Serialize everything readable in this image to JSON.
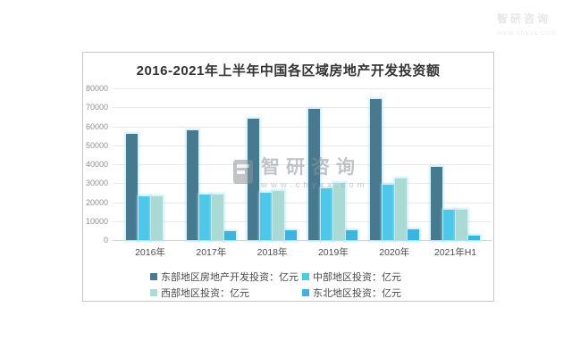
{
  "chart_data": {
    "type": "bar",
    "title": "2016-2021年上半年中国各区域房地产开发投资额",
    "categories": [
      "2016年",
      "2017年",
      "2018年",
      "2019年",
      "2020年",
      "2021年H1"
    ],
    "series": [
      {
        "key": "east",
        "name": "东部地区房地产开发投资：亿元",
        "color": "#47798f",
        "values": [
          56000,
          58000,
          64000,
          69000,
          74500,
          38500
        ]
      },
      {
        "key": "central",
        "name": "中部地区投资：亿元",
        "color": "#4ec7e8",
        "values": [
          23000,
          24000,
          25000,
          27500,
          29000,
          15800
        ]
      },
      {
        "key": "west",
        "name": "西部地区投资：亿元",
        "color": "#abd9d4",
        "values": [
          23000,
          24000,
          25800,
          30200,
          32700,
          16200
        ]
      },
      {
        "key": "northeast",
        "name": "东北地区投资：亿元",
        "color": "#3db4dd",
        "values": [
          0,
          4700,
          5100,
          5200,
          5500,
          2300
        ]
      }
    ],
    "ylim": [
      0,
      80000
    ],
    "ytick_step": 10000,
    "ytick_labels": [
      "0",
      "10000",
      "20000",
      "30000",
      "40000",
      "50000",
      "60000",
      "70000",
      "80000"
    ],
    "grid": true,
    "legend_position": "bottom"
  },
  "watermark": {
    "center": {
      "brand": "智研咨询",
      "url": "www.chyxx.com"
    },
    "corner": {
      "brand": "智研咨询",
      "url": "www.chyxx.com"
    }
  }
}
